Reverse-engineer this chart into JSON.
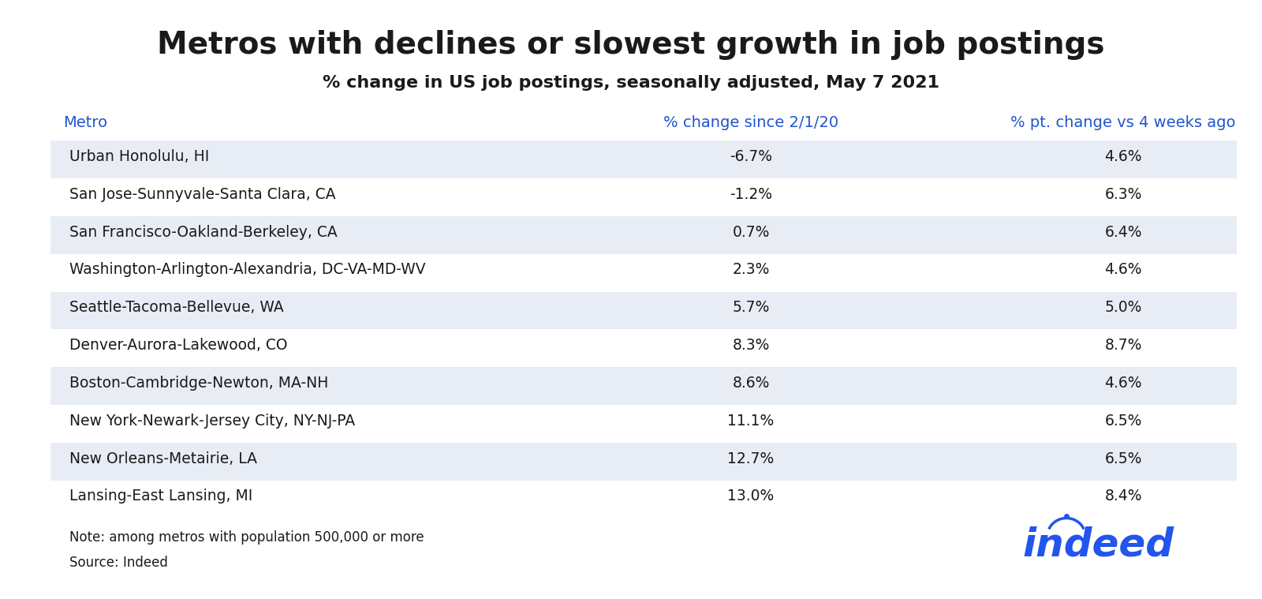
{
  "title": "Metros with declines or slowest growth in job postings",
  "subtitle": "% change in US job postings, seasonally adjusted, May 7 2021",
  "col_headers": [
    "Metro",
    "% change since 2/1/20",
    "% pt. change vs 4 weeks ago"
  ],
  "rows": [
    [
      "Urban Honolulu, HI",
      "-6.7%",
      "4.6%"
    ],
    [
      "San Jose-Sunnyvale-Santa Clara, CA",
      "-1.2%",
      "6.3%"
    ],
    [
      "San Francisco-Oakland-Berkeley, CA",
      "0.7%",
      "6.4%"
    ],
    [
      "Washington-Arlington-Alexandria, DC-VA-MD-WV",
      "2.3%",
      "4.6%"
    ],
    [
      "Seattle-Tacoma-Bellevue, WA",
      "5.7%",
      "5.0%"
    ],
    [
      "Denver-Aurora-Lakewood, CO",
      "8.3%",
      "8.7%"
    ],
    [
      "Boston-Cambridge-Newton, MA-NH",
      "8.6%",
      "4.6%"
    ],
    [
      "New York-Newark-Jersey City, NY-NJ-PA",
      "11.1%",
      "6.5%"
    ],
    [
      "New Orleans-Metairie, LA",
      "12.7%",
      "6.5%"
    ],
    [
      "Lansing-East Lansing, MI",
      "13.0%",
      "8.4%"
    ]
  ],
  "note": "Note: among metros with population 500,000 or more",
  "source": "Source: Indeed",
  "header_color": "#2255CC",
  "row_odd_bg": "#E8EDF5",
  "row_even_bg": "#FFFFFF",
  "text_color": "#1a1a1a",
  "header_row_bg": "#FFFFFF",
  "bg_color": "#FFFFFF",
  "title_color": "#1a1a1a",
  "subtitle_color": "#1a1a1a",
  "indeed_blue": "#2255EE"
}
